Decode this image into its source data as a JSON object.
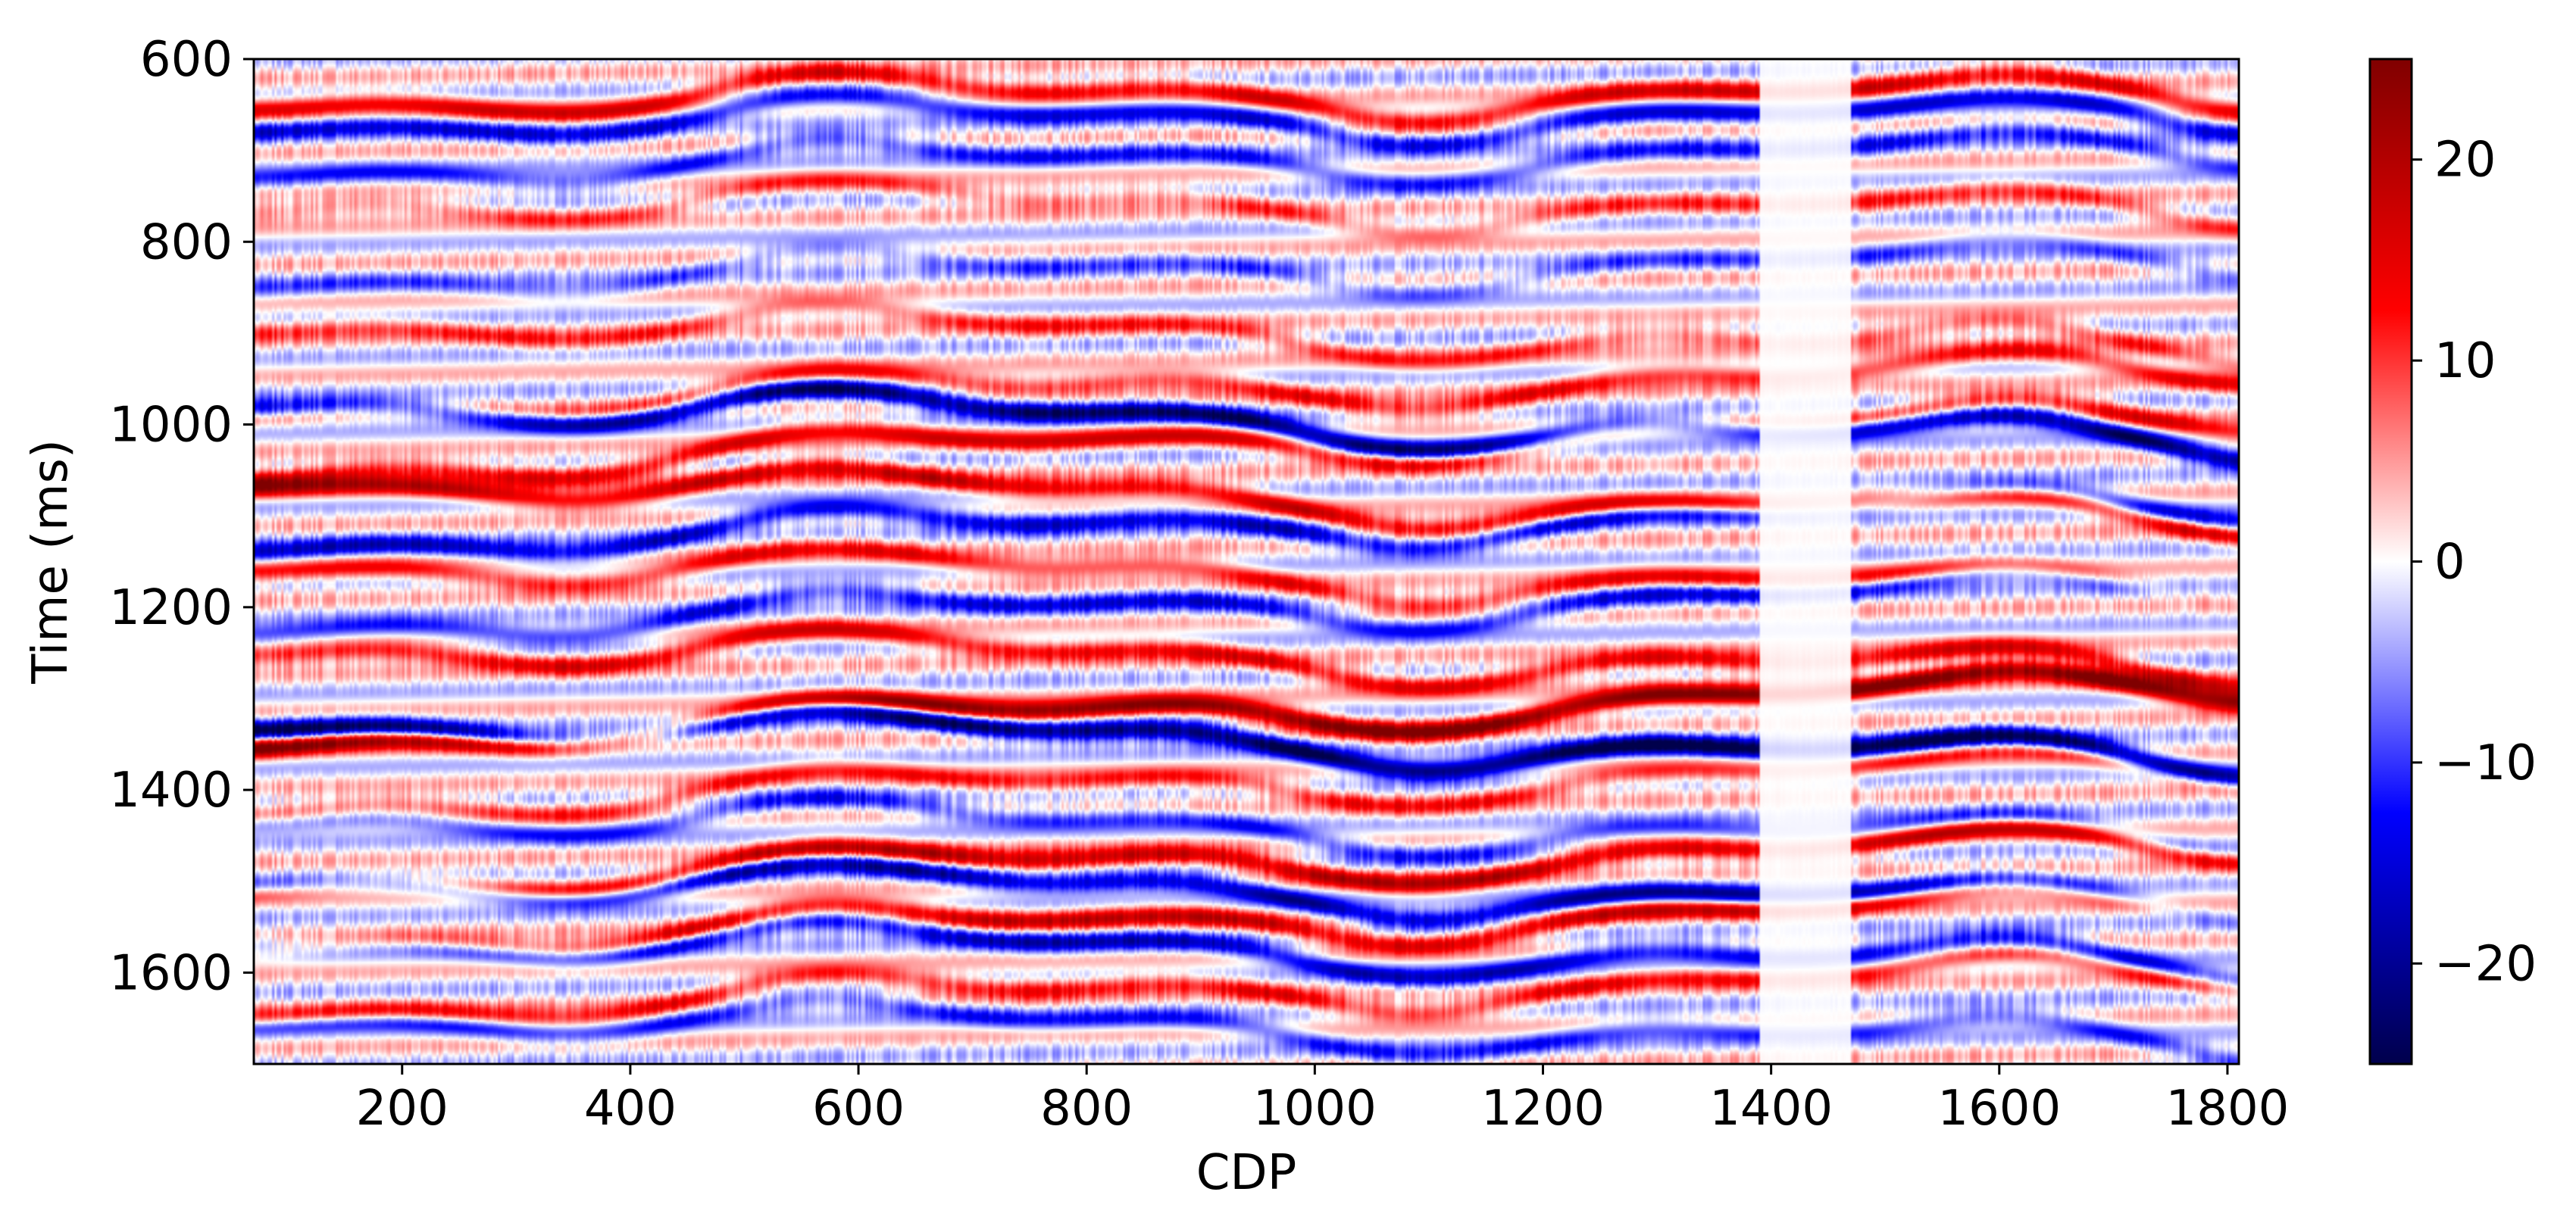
{
  "chart_data": {
    "type": "heatmap",
    "title": "",
    "xlabel": "CDP",
    "ylabel": "Time (ms)",
    "xlim": [
      70,
      1810
    ],
    "ylim": [
      1700,
      600
    ],
    "y_inverted": true,
    "x_ticks": [
      200,
      400,
      600,
      800,
      1000,
      1200,
      1400,
      1600,
      1800
    ],
    "y_ticks": [
      600,
      800,
      1000,
      1200,
      1400,
      1600
    ],
    "colorbar": {
      "colormap": "seismic",
      "range": [
        -25,
        25
      ],
      "ticks": [
        -20,
        -10,
        0,
        10,
        20
      ],
      "tick_labels": [
        "−20",
        "−10",
        "0",
        "10",
        "20"
      ],
      "colors": [
        "#00004c",
        "#0000ff",
        "#ffffff",
        "#ff0000",
        "#800000"
      ]
    },
    "gap": {
      "x_range": [
        1390,
        1470
      ],
      "description_value": 0
    },
    "horizons": [
      {
        "base_time": 640,
        "amplitude": 14,
        "dip": 0.0
      },
      {
        "base_time": 665,
        "amplitude": -13,
        "dip": 0.0
      },
      {
        "base_time": 710,
        "amplitude": -10,
        "dip": 0.01
      },
      {
        "base_time": 760,
        "amplitude": 8,
        "dip": 0.01
      },
      {
        "base_time": 830,
        "amplitude": -7,
        "dip": 0.01
      },
      {
        "base_time": 900,
        "amplitude": 9,
        "dip": 0.02
      },
      {
        "base_time": 960,
        "amplitude": 12,
        "dip": 0.02
      },
      {
        "base_time": 995,
        "amplitude": -22,
        "dip": 0.03
      },
      {
        "base_time": 1020,
        "amplitude": 14,
        "dip": 0.03
      },
      {
        "base_time": 1080,
        "amplitude": 16,
        "dip": 0.03
      },
      {
        "base_time": 1110,
        "amplitude": -15,
        "dip": 0.02
      },
      {
        "base_time": 1165,
        "amplitude": 12,
        "dip": 0.02
      },
      {
        "base_time": 1200,
        "amplitude": -12,
        "dip": 0.02
      },
      {
        "base_time": 1255,
        "amplitude": 14,
        "dip": 0.02
      },
      {
        "base_time": 1315,
        "amplitude": 24,
        "dip": 0.03
      },
      {
        "base_time": 1345,
        "amplitude": -24,
        "dip": 0.03
      },
      {
        "base_time": 1395,
        "amplitude": 10,
        "dip": 0.02
      },
      {
        "base_time": 1440,
        "amplitude": -10,
        "dip": 0.02
      },
      {
        "base_time": 1480,
        "amplitude": 18,
        "dip": 0.02
      },
      {
        "base_time": 1510,
        "amplitude": -18,
        "dip": 0.02
      },
      {
        "base_time": 1545,
        "amplitude": 16,
        "dip": 0.02
      },
      {
        "base_time": 1575,
        "amplitude": -15,
        "dip": 0.02
      },
      {
        "base_time": 1620,
        "amplitude": 12,
        "dip": 0.02
      },
      {
        "base_time": 1660,
        "amplitude": -10,
        "dip": 0.02
      }
    ]
  }
}
